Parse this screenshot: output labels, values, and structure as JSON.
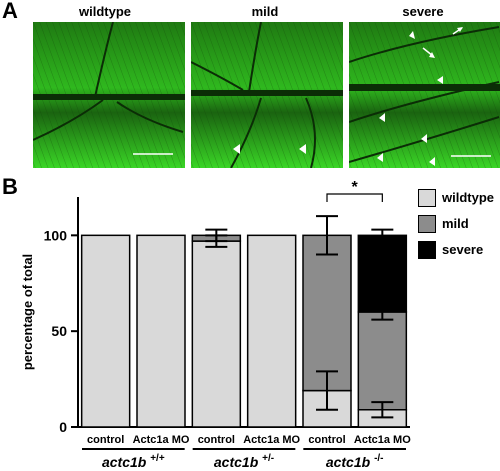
{
  "figure": {
    "panel_a_letter": "A",
    "panel_b_letter": "B",
    "micrographs": [
      {
        "label": "wildtype",
        "arrowheads": 0,
        "arrows": 0
      },
      {
        "label": "mild",
        "arrowheads": 2,
        "arrows": 0
      },
      {
        "label": "severe",
        "arrowheads": 6,
        "arrows": 2
      }
    ],
    "colors": {
      "wildtype": "#d9d9d9",
      "mild": "#8c8c8c",
      "severe": "#000000",
      "muscle_green": "#2fd21d"
    }
  },
  "chart_data": {
    "type": "bar",
    "stacked": true,
    "ylabel": "percentage of total",
    "ylim": [
      0,
      120
    ],
    "yticks": [
      0,
      50,
      100
    ],
    "categories": [
      "control",
      "Actc1a MO",
      "control",
      "Actc1a MO",
      "control",
      "Actc1a MO"
    ],
    "groups": [
      {
        "genotype": "actc1b",
        "superscript": "+/+"
      },
      {
        "genotype": "actc1b",
        "superscript": "+/-"
      },
      {
        "genotype": "actc1b",
        "superscript": "-/-"
      }
    ],
    "series": [
      {
        "name": "wildtype",
        "values": [
          100,
          100,
          97,
          100,
          19,
          9
        ],
        "error": [
          0,
          0,
          3,
          0,
          10,
          4
        ]
      },
      {
        "name": "mild",
        "values": [
          0,
          0,
          3,
          0,
          81,
          51
        ],
        "error": [
          0,
          0,
          3,
          0,
          10,
          4
        ]
      },
      {
        "name": "severe",
        "values": [
          0,
          0,
          0,
          0,
          0,
          40
        ],
        "error": [
          0,
          0,
          0,
          0,
          0,
          3
        ]
      }
    ],
    "significance": {
      "between": [
        4,
        5
      ],
      "label": "*"
    },
    "legend": {
      "position": "right",
      "entries": [
        "wildtype",
        "mild",
        "severe"
      ]
    }
  }
}
